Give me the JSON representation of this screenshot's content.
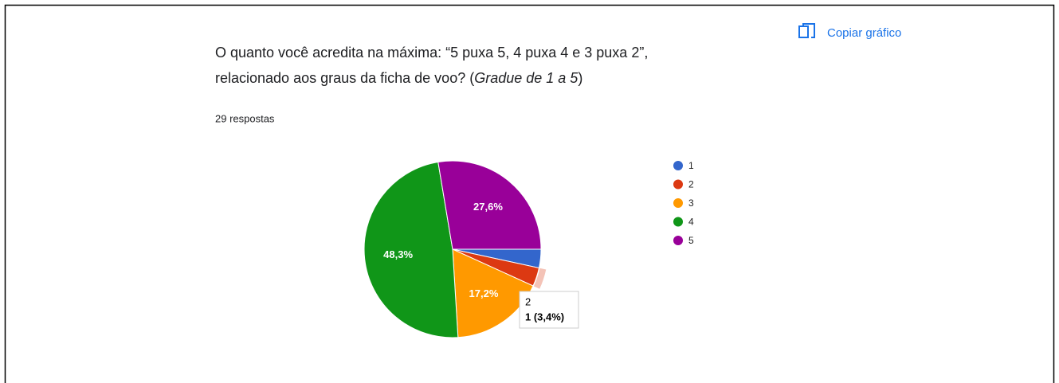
{
  "header": {
    "copy_button": "Copiar gráfico"
  },
  "question": {
    "title_line1": "O quanto você acredita na máxima: “5 puxa 5, 4 puxa 4 e 3 puxa 2”,",
    "title_line2_before": "relacionado aos graus da ficha de voo? (",
    "title_line2_italic": "Gradue de 1 a 5",
    "title_line2_after": ")",
    "responses": "29 respostas"
  },
  "chart_data": {
    "type": "pie",
    "categories": [
      "1",
      "2",
      "3",
      "4",
      "5"
    ],
    "values": [
      3.4,
      3.4,
      17.2,
      48.3,
      27.6
    ],
    "value_labels": [
      null,
      null,
      "17,2%",
      "48,3%",
      "27,6%"
    ],
    "colors": [
      "#3366cc",
      "#dc3912",
      "#ff9900",
      "#109618",
      "#990099"
    ],
    "legend": "right",
    "tooltip": {
      "category": "2",
      "text": "1 (3,4%)"
    }
  }
}
